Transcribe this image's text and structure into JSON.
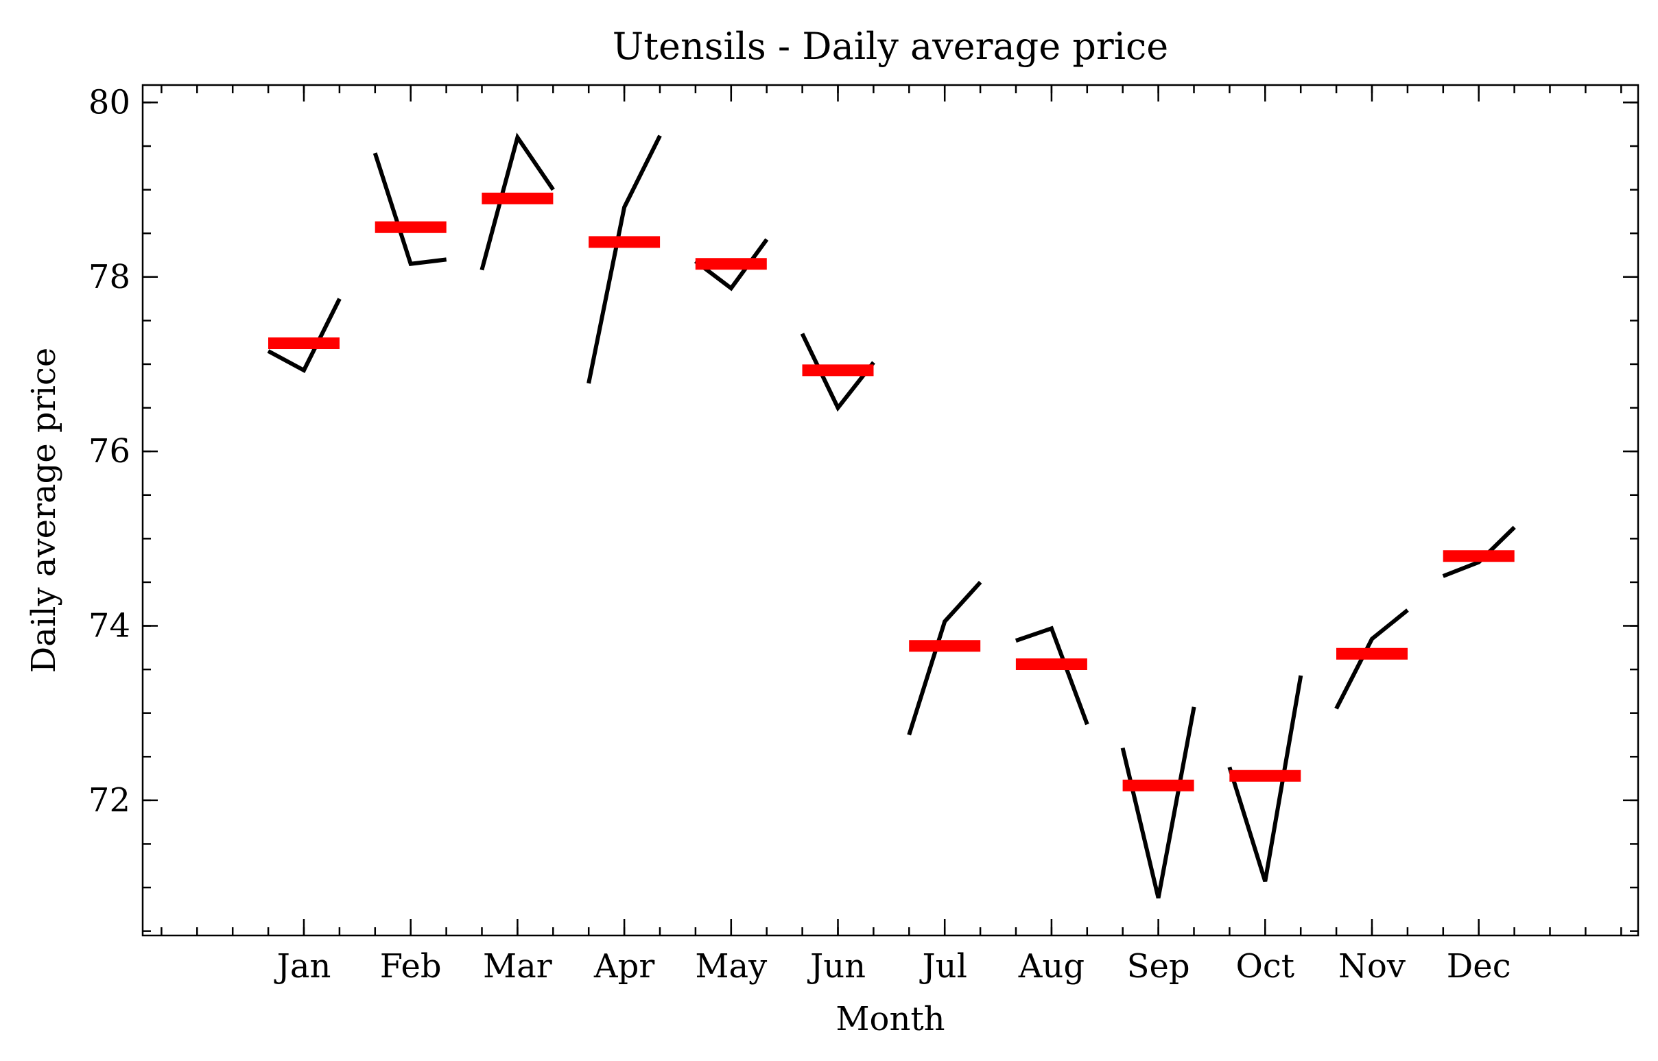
{
  "chart_data": {
    "type": "line",
    "title": "Utensils - Daily average price",
    "xlabel": "Month",
    "ylabel": "Daily average price",
    "ylim": [
      70.45,
      80.2
    ],
    "yticks": [
      72,
      74,
      76,
      78,
      80
    ],
    "ytick_labels": [
      "72",
      "74",
      "76",
      "78",
      "80"
    ],
    "yminor_step": 0.5,
    "grid": false,
    "categories": [
      "Jan",
      "Feb",
      "Mar",
      "Apr",
      "May",
      "Jun",
      "Jul",
      "Aug",
      "Sep",
      "Oct",
      "Nov",
      "Dec"
    ],
    "subseries": [
      [
        77.15,
        76.93,
        77.75
      ],
      [
        79.42,
        78.15,
        78.2
      ],
      [
        78.08,
        79.6,
        79.0
      ],
      [
        76.78,
        78.8,
        79.62
      ],
      [
        78.18,
        77.87,
        78.43
      ],
      [
        77.35,
        76.5,
        77.02
      ],
      [
        72.75,
        74.05,
        74.5
      ],
      [
        73.83,
        73.97,
        72.87
      ],
      [
        72.6,
        70.88,
        73.07
      ],
      [
        72.38,
        71.07,
        73.43
      ],
      [
        73.05,
        73.85,
        74.18
      ],
      [
        74.57,
        74.73,
        75.13
      ]
    ],
    "means": [
      77.24,
      78.57,
      78.9,
      78.4,
      78.15,
      76.93,
      73.77,
      73.56,
      72.17,
      72.28,
      73.68,
      74.8
    ],
    "colors": {
      "line": "#000000",
      "mean": "#ff0000"
    }
  }
}
